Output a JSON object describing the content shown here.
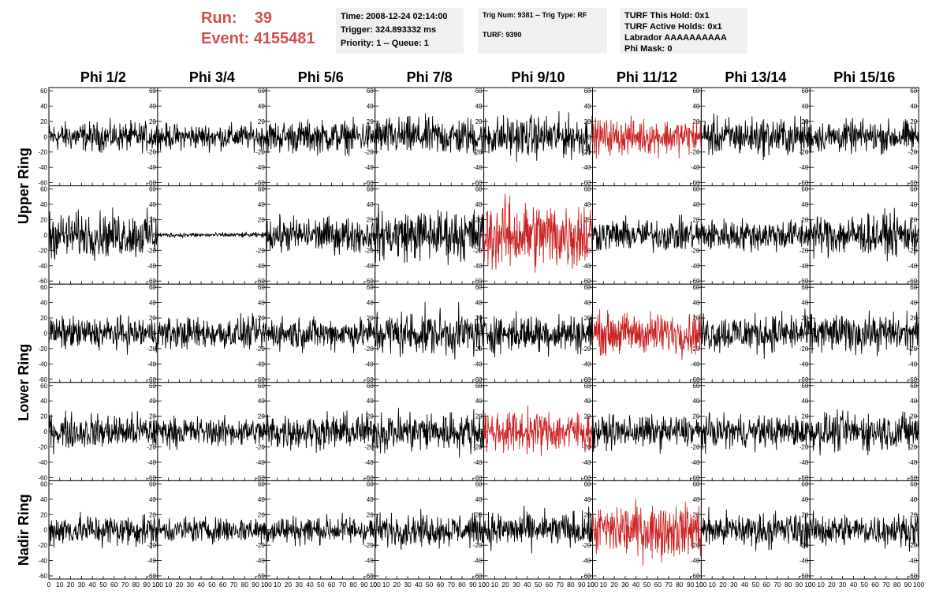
{
  "header": {
    "run_label": "Run:",
    "run_value": "39",
    "event_label": "Event:",
    "event_value": "4155481"
  },
  "info": {
    "time": "Time: 2008-12-24 02:14:00",
    "trigger": "Trigger: 324.893332 ms",
    "priority": "Priority: 1 -- Queue: 1",
    "trig_num": "Trig Num: 9381 -- Trig Type: RF",
    "turf": "TURF: 9390",
    "turf_this_hold": "TURF This Hold: 0x1",
    "turf_active_holds": "TURF Active Holds: 0x1",
    "labrador": "Labrador AAAAAAAAAA",
    "phi_mask": "Phi Mask: 0"
  },
  "colors": {
    "normal_trace": "#000000",
    "triggered_trace": "#cc2222",
    "header_text": "#d05050",
    "info_bg": "#f0f0f0"
  },
  "chart_data": {
    "type": "line",
    "columns": [
      "Phi 1/2",
      "Phi 3/4",
      "Phi 5/6",
      "Phi 7/8",
      "Phi 9/10",
      "Phi 11/12",
      "Phi 13/14",
      "Phi 15/16"
    ],
    "ring_labels": [
      {
        "name": "Upper Ring",
        "rows": [
          0,
          1
        ]
      },
      {
        "name": "Lower Ring",
        "rows": [
          2,
          3
        ]
      },
      {
        "name": "Nadir Ring",
        "rows": [
          4
        ]
      }
    ],
    "xlim": [
      0,
      100
    ],
    "ylim": [
      -60,
      60
    ],
    "xticks": [
      0,
      10,
      20,
      30,
      40,
      50,
      60,
      70,
      80,
      90,
      100
    ],
    "yticks": [
      -60,
      -40,
      -20,
      0,
      20,
      40,
      60
    ],
    "samples_per_trace": 260,
    "panels": [
      [
        {
          "amp": 9,
          "color": "black"
        },
        {
          "amp": 8,
          "color": "black"
        },
        {
          "amp": 10,
          "color": "black"
        },
        {
          "amp": 12,
          "color": "black"
        },
        {
          "amp": 13,
          "color": "black"
        },
        {
          "amp": 11,
          "color": "red"
        },
        {
          "amp": 12,
          "color": "black"
        },
        {
          "amp": 10,
          "color": "black"
        }
      ],
      [
        {
          "amp": 14,
          "color": "black"
        },
        {
          "amp": 1.5,
          "color": "black"
        },
        {
          "amp": 11,
          "color": "black"
        },
        {
          "amp": 16,
          "color": "black"
        },
        {
          "amp": 22,
          "color": "red"
        },
        {
          "amp": 10,
          "color": "black"
        },
        {
          "amp": 10,
          "color": "black"
        },
        {
          "amp": 13,
          "color": "black"
        }
      ],
      [
        {
          "amp": 10,
          "color": "black"
        },
        {
          "amp": 10,
          "color": "black"
        },
        {
          "amp": 10,
          "color": "black"
        },
        {
          "amp": 14,
          "color": "black"
        },
        {
          "amp": 12,
          "color": "black"
        },
        {
          "amp": 13,
          "color": "red"
        },
        {
          "amp": 12,
          "color": "black"
        },
        {
          "amp": 12,
          "color": "black"
        }
      ],
      [
        {
          "amp": 11,
          "color": "black"
        },
        {
          "amp": 9,
          "color": "black"
        },
        {
          "amp": 11,
          "color": "black"
        },
        {
          "amp": 13,
          "color": "black"
        },
        {
          "amp": 13,
          "color": "red"
        },
        {
          "amp": 10,
          "color": "black"
        },
        {
          "amp": 10,
          "color": "black"
        },
        {
          "amp": 12,
          "color": "black"
        }
      ],
      [
        {
          "amp": 10,
          "color": "black"
        },
        {
          "amp": 8,
          "color": "black"
        },
        {
          "amp": 9,
          "color": "black"
        },
        {
          "amp": 10,
          "color": "black"
        },
        {
          "amp": 11,
          "color": "black"
        },
        {
          "amp": 17,
          "color": "red"
        },
        {
          "amp": 11,
          "color": "black"
        },
        {
          "amp": 10,
          "color": "black"
        }
      ]
    ]
  }
}
